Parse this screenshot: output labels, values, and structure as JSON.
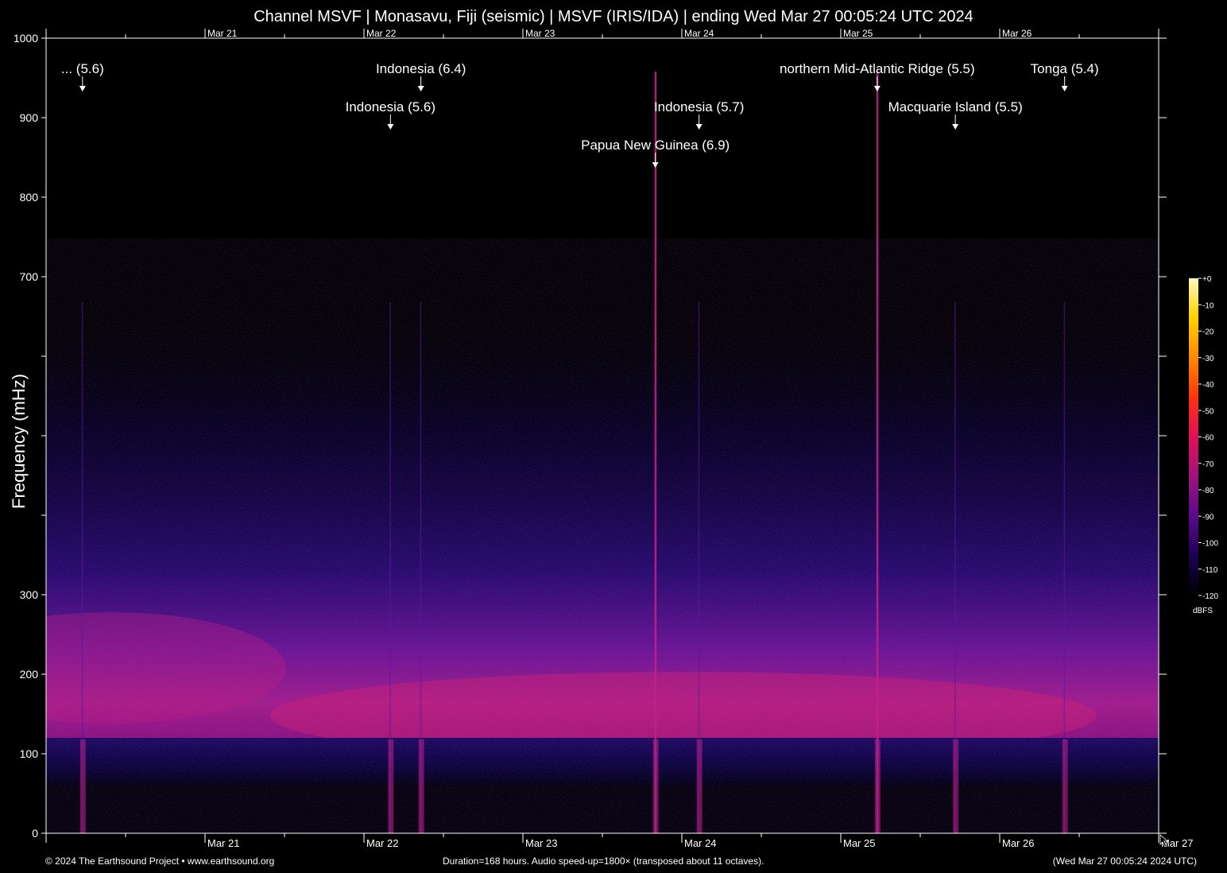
{
  "title": "Channel MSVF | Monasavu, Fiji (seismic) | MSVF (IRIS/IDA) | ending Wed Mar 27 00:05:24 UTC 2024",
  "footer": {
    "left": "© 2024 The Earthsound Project • www.earthsound.org",
    "center": "Duration=168 hours. Audio speed-up=1800× (transposed about 11 octaves).",
    "right": "(Wed Mar 27 00:05:24 2024 UTC)"
  },
  "chart_data": {
    "type": "heatmap",
    "ylabel": "Frequency (mHz)",
    "ylim": [
      0,
      1000
    ],
    "y_ticks": [
      0,
      100,
      200,
      300,
      400,
      500,
      600,
      700,
      800,
      900,
      1000
    ],
    "y_tick_labels": [
      "0",
      "100",
      "200",
      "300",
      "",
      "",
      "",
      "700",
      "800",
      "900",
      "1000"
    ],
    "x_unit_hours": 168,
    "x_day_labels": [
      {
        "label": "Mar 21",
        "hour": 24
      },
      {
        "label": "Mar 22",
        "hour": 48
      },
      {
        "label": "Mar 23",
        "hour": 72
      },
      {
        "label": "Mar 24",
        "hour": 96
      },
      {
        "label": "Mar 25",
        "hour": 120
      },
      {
        "label": "Mar 26",
        "hour": 144
      },
      {
        "label": "Mar 27",
        "hour": 168
      }
    ],
    "events": [
      {
        "label": "... (5.6)",
        "hour": 5.5,
        "row": 0
      },
      {
        "label": "Indonesia (6.4)",
        "hour": 56.6,
        "row": 0
      },
      {
        "label": "Indonesia (5.6)",
        "hour": 52.0,
        "row": 1
      },
      {
        "label": "northern Mid-Atlantic Ridge (5.5)",
        "hour": 125.5,
        "row": 0
      },
      {
        "label": "Tonga (5.4)",
        "hour": 153.8,
        "row": 0
      },
      {
        "label": "Indonesia (5.7)",
        "hour": 98.6,
        "row": 1
      },
      {
        "label": "Macquarie Island (5.5)",
        "hour": 137.3,
        "row": 1
      },
      {
        "label": "Papua New Guinea (6.9)",
        "hour": 92.0,
        "row": 2
      }
    ],
    "colorbar": {
      "label": "dBFS",
      "ticks": [
        "+0",
        "-10",
        "-20",
        "-30",
        "-40",
        "-50",
        "-60",
        "-70",
        "-80",
        "-90",
        "-100",
        "-110",
        "-120"
      ],
      "colors": [
        "#000000",
        "#1a0050",
        "#5a0a8c",
        "#a0147a",
        "#e0105a",
        "#ff3010",
        "#ff8a00",
        "#ffd400",
        "#fff8c0"
      ]
    }
  }
}
